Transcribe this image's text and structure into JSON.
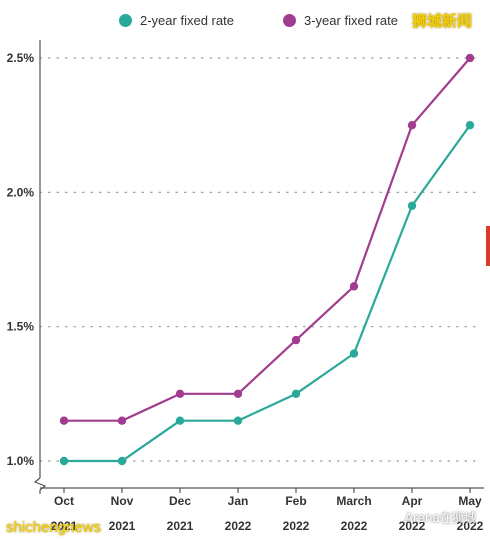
{
  "chart_data": {
    "type": "line",
    "categories": [
      [
        "Oct",
        "2021"
      ],
      [
        "Nov",
        "2021"
      ],
      [
        "Dec",
        "2021"
      ],
      [
        "Jan",
        "2022"
      ],
      [
        "Feb",
        "2022"
      ],
      [
        "March",
        "2022"
      ],
      [
        "Apr",
        "2022"
      ],
      [
        "May",
        "2022"
      ]
    ],
    "series": [
      {
        "name": "2-year fixed rate",
        "color": "#2aa99a",
        "values": [
          1.0,
          1.0,
          1.15,
          1.15,
          1.25,
          1.4,
          1.95,
          2.25
        ]
      },
      {
        "name": "3-year fixed rate",
        "color": "#a23c8f",
        "values": [
          1.15,
          1.15,
          1.25,
          1.25,
          1.45,
          1.65,
          2.25,
          2.5
        ]
      }
    ],
    "y_ticks": [
      {
        "value": 1.0,
        "label": "1.0%"
      },
      {
        "value": 1.5,
        "label": "1.5%"
      },
      {
        "value": 2.0,
        "label": "2.0%"
      },
      {
        "value": 2.5,
        "label": "2.5%"
      }
    ],
    "ylim": [
      0.9,
      2.5
    ],
    "grid": "horizontal dotted",
    "legend_placement": "top",
    "axis_break": true
  },
  "watermarks": {
    "top_right": "狮城新闻",
    "bottom_left": "shichengnews",
    "bottom_right": "Arena在狮城"
  }
}
